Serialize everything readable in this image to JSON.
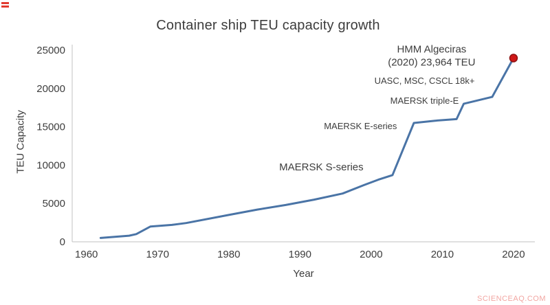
{
  "watermark": {
    "text": "SCIENCEAQ.COM"
  },
  "chart_data": {
    "type": "line",
    "title": "Container ship TEU capacity growth",
    "xlabel": "Year",
    "ylabel": "TEU Capacity",
    "xlim": [
      1958,
      2023
    ],
    "ylim": [
      0,
      25000
    ],
    "x_ticks": [
      1960,
      1970,
      1980,
      1990,
      2000,
      2010,
      2020
    ],
    "y_ticks": [
      0,
      5000,
      10000,
      15000,
      20000,
      25000
    ],
    "grid": false,
    "legend": "none",
    "colors": {
      "line": "#4a74a6",
      "marker_fill": "#cf1717",
      "marker_stroke": "#8e1212",
      "axis": "#c2c2c2",
      "text": "#3d3d3d",
      "watermark": "#f2a6a2",
      "corner_mark": "#e23b30"
    },
    "series": [
      {
        "name": "Container ship TEU capacity",
        "points": [
          [
            1962,
            500
          ],
          [
            1966,
            800
          ],
          [
            1967,
            1000
          ],
          [
            1969,
            2000
          ],
          [
            1972,
            2200
          ],
          [
            1974,
            2450
          ],
          [
            1980,
            3500
          ],
          [
            1984,
            4200
          ],
          [
            1988,
            4800
          ],
          [
            1992,
            5500
          ],
          [
            1996,
            6300
          ],
          [
            1999,
            7400
          ],
          [
            2001,
            8100
          ],
          [
            2003,
            8700
          ],
          [
            2006,
            15500
          ],
          [
            2009,
            15800
          ],
          [
            2012,
            16000
          ],
          [
            2013,
            18000
          ],
          [
            2017,
            18900
          ],
          [
            2020,
            23964
          ]
        ]
      }
    ],
    "endpoint_marker": {
      "x": 2020,
      "y": 23964
    },
    "annotations": [
      {
        "label": "MAERSK S-series",
        "x": 1993,
        "y": 9800,
        "size": 15
      },
      {
        "label": "MAERSK E-series",
        "x": 1998.5,
        "y": 15100,
        "size": 13
      },
      {
        "label": "MAERSK triple-E",
        "x": 2007.5,
        "y": 18400,
        "size": 13
      },
      {
        "label": "UASC, MSC, CSCL 18k+",
        "x": 2007.5,
        "y": 21000,
        "size": 13
      },
      {
        "label": "HMM Algeciras\n(2020) 23,964 TEU",
        "x": 2008.5,
        "y": 24300,
        "size": 15
      }
    ]
  }
}
